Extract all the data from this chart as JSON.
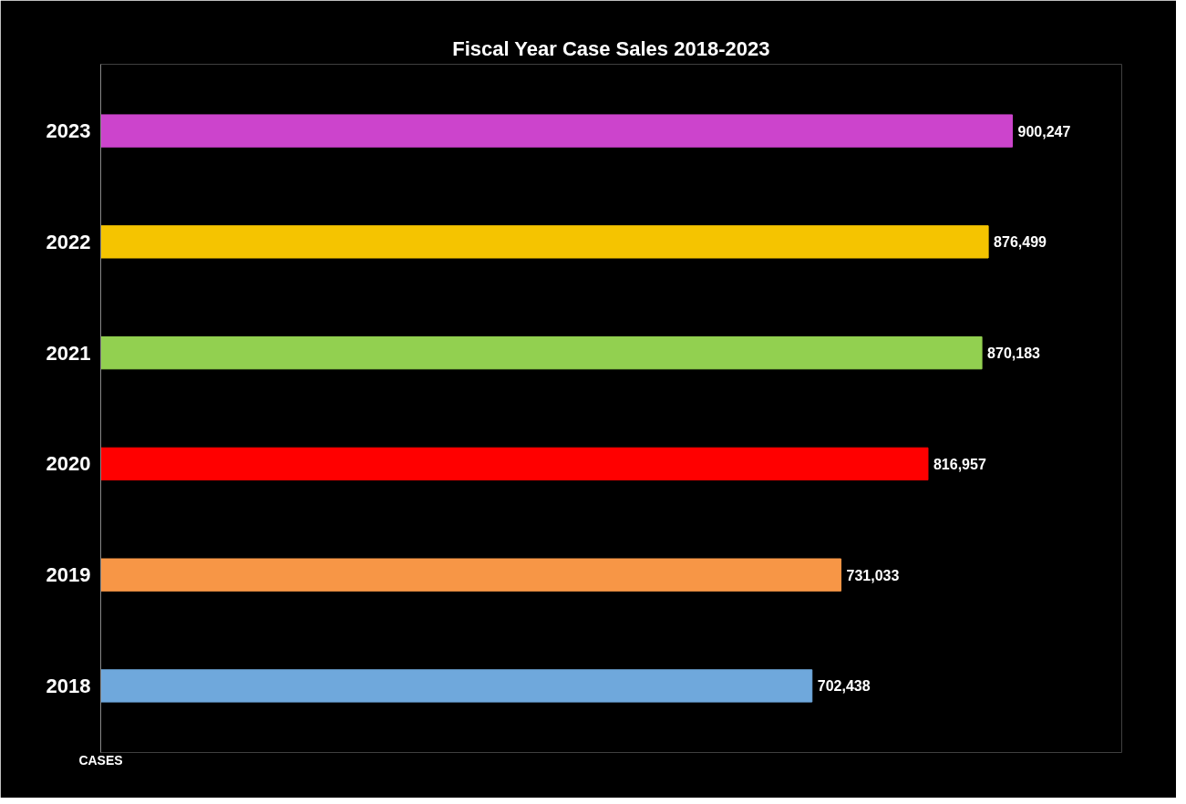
{
  "chart_data": {
    "type": "bar",
    "orientation": "horizontal",
    "title": "Fiscal Year Case Sales 2018-2023",
    "xlabel": "CASES",
    "categories": [
      "2023",
      "2022",
      "2021",
      "2020",
      "2019",
      "2018"
    ],
    "values": [
      900247,
      876499,
      870183,
      816957,
      731033,
      702438
    ],
    "colors": [
      "#cc44cc",
      "#f5c400",
      "#92d050",
      "#ff0000",
      "#f79646",
      "#6fa8dc"
    ],
    "value_labels": [
      "900,247",
      "876,499",
      "870,183",
      "816,957",
      "731,033",
      "702,438"
    ]
  }
}
